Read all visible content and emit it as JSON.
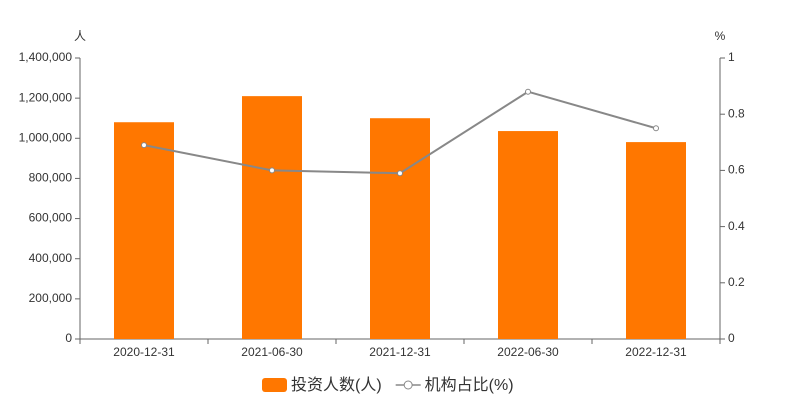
{
  "chart_data": {
    "type": "bar",
    "y_unit": "人",
    "y2_unit": "%",
    "categories": [
      "2020-12-31",
      "2021-06-30",
      "2021-12-31",
      "2022-06-30",
      "2022-12-31"
    ],
    "series": [
      {
        "name": "投资人数(人)",
        "type": "bar",
        "color": "#ff7700",
        "values": [
          1080000,
          1210000,
          1100000,
          1036000,
          981000
        ]
      },
      {
        "name": "机构占比(%)",
        "type": "line",
        "axis": "y2",
        "color": "#888888",
        "values": [
          0.69,
          0.6,
          0.59,
          0.88,
          0.75
        ]
      }
    ],
    "ylim": [
      0,
      1400000
    ],
    "yticks": [
      0,
      {
        "value": 200000,
        "label": "200,000"
      },
      {
        "value": 400000,
        "label": "400,000"
      },
      {
        "value": 600000,
        "label": "600,000"
      },
      {
        "value": 800000,
        "label": "800,000"
      },
      {
        "value": 1000000,
        "label": "1,000,000"
      },
      {
        "value": 1200000,
        "label": "1,200,000"
      },
      {
        "value": 1400000,
        "label": "1,400,000"
      }
    ],
    "y2lim": [
      0,
      1
    ],
    "y2ticks": [
      0,
      0.2,
      0.4,
      0.6,
      0.8,
      1
    ],
    "grid": false
  }
}
